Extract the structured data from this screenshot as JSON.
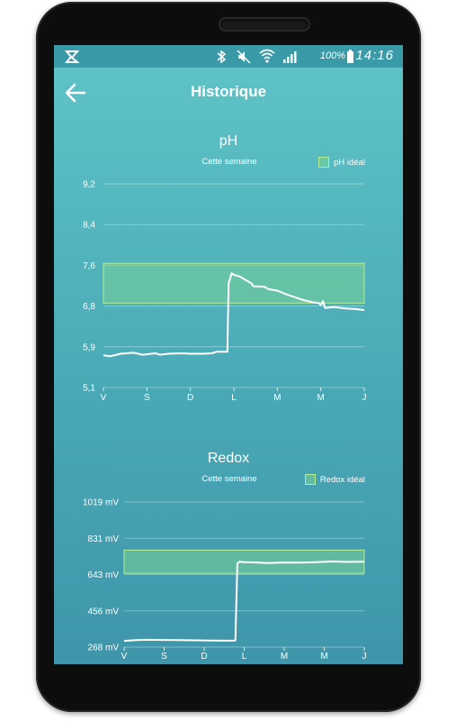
{
  "status_bar": {
    "battery_text": "100%",
    "time": "14:16"
  },
  "app_bar": {
    "title": "Historique",
    "back_icon": "arrow-left-icon"
  },
  "colors": {
    "screen_top": "#5fc4c8",
    "screen_bottom": "#3f95aa",
    "ideal_band": "#78d296",
    "ideal_band_border": "#b5ee8a",
    "line": "#ffffff"
  },
  "chart_data": [
    {
      "type": "line",
      "title": "pH",
      "subtitle": "Cette semaine",
      "legend": "pH idéal",
      "legend_position": "top-right",
      "x_ticks": [
        "V",
        "S",
        "D",
        "L",
        "M",
        "M",
        "J"
      ],
      "y_ticks": [
        "9,2",
        "8,4",
        "7,6",
        "6,8",
        "5,9",
        "5,1"
      ],
      "ylim": [
        5.1,
        9.2
      ],
      "xlim": [
        0,
        6
      ],
      "grid": true,
      "ideal_range": [
        6.8,
        7.6
      ],
      "series": [
        {
          "x": [
            0,
            0.15,
            0.4,
            0.7,
            0.9,
            1.2,
            1.3,
            1.5,
            1.8,
            2.0,
            2.3,
            2.5,
            2.6,
            2.85,
            2.88,
            2.95,
            3.0,
            3.15,
            3.2,
            3.4,
            3.45,
            3.7,
            3.8,
            4.0,
            4.2,
            4.4,
            4.6,
            4.8,
            4.95,
            5.0,
            5.05,
            5.1,
            5.3,
            5.6,
            5.8,
            6.0
          ],
          "y": [
            5.75,
            5.73,
            5.78,
            5.8,
            5.76,
            5.79,
            5.76,
            5.78,
            5.79,
            5.78,
            5.78,
            5.79,
            5.82,
            5.82,
            7.2,
            7.4,
            7.37,
            7.33,
            7.3,
            7.2,
            7.14,
            7.13,
            7.08,
            7.05,
            6.98,
            6.92,
            6.86,
            6.82,
            6.8,
            6.76,
            6.84,
            6.7,
            6.72,
            6.69,
            6.68,
            6.66
          ]
        }
      ]
    },
    {
      "type": "line",
      "title": "Redox",
      "subtitle": "Cette semaine",
      "legend": "Redox idéal",
      "legend_position": "top-right",
      "x_ticks": [
        "V",
        "S",
        "D",
        "L",
        "M",
        "M",
        "J"
      ],
      "y_ticks": [
        "1019 mV",
        "831 mV",
        "643 mV",
        "456 mV",
        "268 mV"
      ],
      "ylim": [
        268,
        1019
      ],
      "xlim": [
        0,
        6
      ],
      "grid": true,
      "ideal_range": [
        650,
        770
      ],
      "series": [
        {
          "x": [
            0,
            0.3,
            0.6,
            1.0,
            1.4,
            1.8,
            2.2,
            2.6,
            2.78,
            2.83,
            2.88,
            3.0,
            3.3,
            3.6,
            4.0,
            4.4,
            4.8,
            5.2,
            5.6,
            6.0
          ],
          "y": [
            300,
            304,
            306,
            305,
            304,
            303,
            302,
            301,
            302,
            700,
            710,
            708,
            706,
            703,
            706,
            705,
            708,
            711,
            709,
            710
          ]
        }
      ]
    }
  ]
}
